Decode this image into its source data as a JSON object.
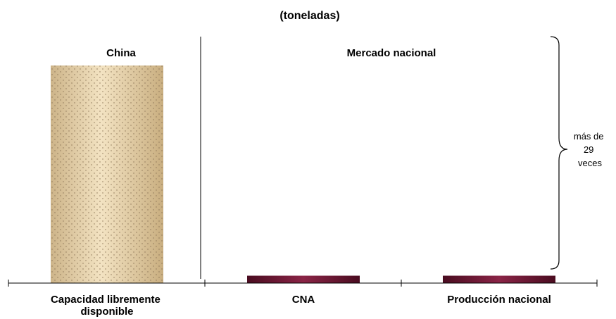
{
  "chart_data": {
    "type": "bar",
    "title": "(toneladas)",
    "categories": [
      "Capacidad libremente disponible",
      "CNA",
      "Producción nacional"
    ],
    "category_lines": [
      [
        "Capacidad libremente",
        "disponible"
      ],
      [
        "CNA"
      ],
      [
        "Producción nacional"
      ]
    ],
    "groups": [
      "China",
      "Mercado nacional"
    ],
    "values": [
      29.5,
      1,
      1
    ],
    "value_unit": "relative to CNA",
    "annotation": {
      "lines": [
        "más de",
        "29",
        "veces"
      ]
    },
    "colors": {
      "china_bar": "#e8d3a8",
      "national_bar": "#7a1a38"
    },
    "grid": false,
    "legend": "none"
  }
}
